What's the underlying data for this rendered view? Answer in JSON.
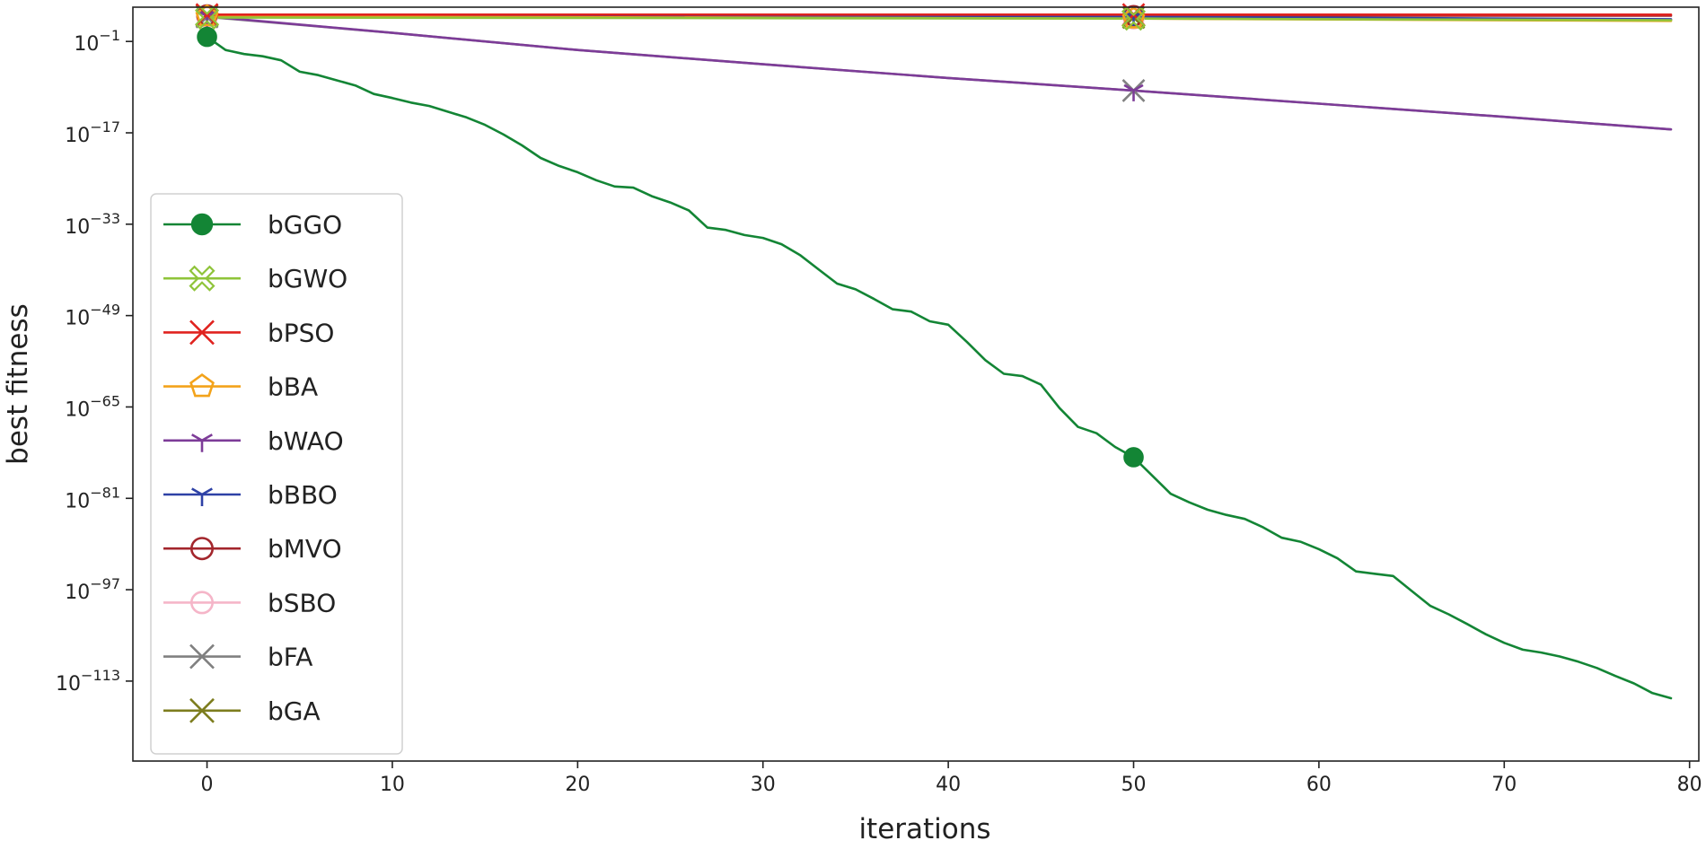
{
  "chart_data": {
    "type": "line",
    "xlabel": "iterations",
    "ylabel": "best fitness",
    "yscale": "log",
    "xlim": [
      -4,
      80.5
    ],
    "ylim_exponent": [
      -127,
      5
    ],
    "x_ticks": [
      {
        "value": 0,
        "label": "0"
      },
      {
        "value": 10,
        "label": "10"
      },
      {
        "value": 20,
        "label": "20"
      },
      {
        "value": 30,
        "label": "30"
      },
      {
        "value": 40,
        "label": "40"
      },
      {
        "value": 50,
        "label": "50"
      },
      {
        "value": 60,
        "label": "60"
      },
      {
        "value": 70,
        "label": "70"
      },
      {
        "value": 80,
        "label": "80"
      }
    ],
    "y_ticks": [
      {
        "exp": -1,
        "base": "10",
        "sup": "−1"
      },
      {
        "exp": -17,
        "base": "10",
        "sup": "−17"
      },
      {
        "exp": -33,
        "base": "10",
        "sup": "−33"
      },
      {
        "exp": -49,
        "base": "10",
        "sup": "−49"
      },
      {
        "exp": -65,
        "base": "10",
        "sup": "−65"
      },
      {
        "exp": -81,
        "base": "10",
        "sup": "−81"
      },
      {
        "exp": -97,
        "base": "10",
        "sup": "−97"
      },
      {
        "exp": -113,
        "base": "10",
        "sup": "−113"
      }
    ],
    "legend_position": "center-left",
    "marker_iterations": [
      0,
      50
    ],
    "series": [
      {
        "name": "bGGO",
        "color": "#138535",
        "marker": "filled-circle",
        "points_exp": [
          [
            0,
            -0.2
          ],
          [
            1,
            -2.5
          ],
          [
            2,
            -3.2
          ],
          [
            3,
            -3.6
          ],
          [
            4,
            -4.3
          ],
          [
            5,
            -6.3
          ],
          [
            6,
            -6.9
          ],
          [
            7,
            -7.8
          ],
          [
            8,
            -8.7
          ],
          [
            9,
            -10.2
          ],
          [
            10,
            -10.9
          ],
          [
            11,
            -11.7
          ],
          [
            12,
            -12.3
          ],
          [
            13,
            -13.3
          ],
          [
            14,
            -14.3
          ],
          [
            15,
            -15.6
          ],
          [
            16,
            -17.3
          ],
          [
            17,
            -19.2
          ],
          [
            18,
            -21.4
          ],
          [
            19,
            -22.8
          ],
          [
            20,
            -23.9
          ],
          [
            21,
            -25.3
          ],
          [
            22,
            -26.4
          ],
          [
            23,
            -26.6
          ],
          [
            24,
            -28.1
          ],
          [
            25,
            -29.2
          ],
          [
            26,
            -30.6
          ],
          [
            27,
            -33.6
          ],
          [
            28,
            -34.0
          ],
          [
            29,
            -34.9
          ],
          [
            30,
            -35.4
          ],
          [
            31,
            -36.5
          ],
          [
            32,
            -38.4
          ],
          [
            33,
            -40.9
          ],
          [
            34,
            -43.4
          ],
          [
            35,
            -44.4
          ],
          [
            36,
            -46.1
          ],
          [
            37,
            -47.9
          ],
          [
            38,
            -48.3
          ],
          [
            39,
            -50.0
          ],
          [
            40,
            -50.6
          ],
          [
            41,
            -53.6
          ],
          [
            42,
            -56.8
          ],
          [
            43,
            -59.2
          ],
          [
            44,
            -59.6
          ],
          [
            45,
            -61.1
          ],
          [
            46,
            -65.2
          ],
          [
            47,
            -68.5
          ],
          [
            48,
            -69.6
          ],
          [
            49,
            -72.0
          ],
          [
            50,
            -73.8
          ],
          [
            51,
            -77.0
          ],
          [
            52,
            -80.2
          ],
          [
            53,
            -81.7
          ],
          [
            54,
            -83.0
          ],
          [
            55,
            -83.9
          ],
          [
            56,
            -84.6
          ],
          [
            57,
            -86.1
          ],
          [
            58,
            -87.9
          ],
          [
            59,
            -88.6
          ],
          [
            60,
            -89.9
          ],
          [
            61,
            -91.5
          ],
          [
            62,
            -93.8
          ],
          [
            63,
            -94.2
          ],
          [
            64,
            -94.6
          ],
          [
            65,
            -97.2
          ],
          [
            66,
            -99.8
          ],
          [
            67,
            -101.3
          ],
          [
            68,
            -103.0
          ],
          [
            69,
            -104.8
          ],
          [
            70,
            -106.3
          ],
          [
            71,
            -107.5
          ],
          [
            72,
            -108.0
          ],
          [
            73,
            -108.7
          ],
          [
            74,
            -109.6
          ],
          [
            75,
            -110.7
          ],
          [
            76,
            -112.1
          ],
          [
            77,
            -113.4
          ],
          [
            78,
            -115.1
          ],
          [
            79,
            -116.0
          ]
        ]
      },
      {
        "name": "bGWO",
        "color": "#8fc43a",
        "marker": "open-cross-x",
        "points_exp": [
          [
            0,
            3.2
          ],
          [
            50,
            3.0
          ],
          [
            79,
            2.7
          ]
        ]
      },
      {
        "name": "bPSO",
        "color": "#e0231f",
        "marker": "x",
        "points_exp": [
          [
            0,
            3.7
          ],
          [
            50,
            3.7
          ],
          [
            79,
            3.7
          ]
        ]
      },
      {
        "name": "bBA",
        "color": "#f3a31b",
        "marker": "open-pentagon",
        "points_exp": [
          [
            0,
            3.4
          ],
          [
            50,
            3.0
          ],
          [
            79,
            2.6
          ]
        ]
      },
      {
        "name": "bWAO",
        "color": "#7d3c98",
        "marker": "tri-down",
        "points_exp": [
          [
            0,
            3.4
          ],
          [
            10,
            0.5
          ],
          [
            20,
            -2.5
          ],
          [
            30,
            -5.0
          ],
          [
            40,
            -7.4
          ],
          [
            50,
            -9.6
          ],
          [
            60,
            -11.9
          ],
          [
            70,
            -14.2
          ],
          [
            79,
            -16.4
          ]
        ]
      },
      {
        "name": "bBBO",
        "color": "#2e41a6",
        "marker": "tri-down",
        "points_exp": [
          [
            0,
            3.5
          ],
          [
            50,
            3.3
          ],
          [
            79,
            2.9
          ]
        ]
      },
      {
        "name": "bMVO",
        "color": "#a3262c",
        "marker": "open-circle",
        "points_exp": [
          [
            0,
            3.6
          ],
          [
            50,
            3.5
          ],
          [
            79,
            3.5
          ]
        ]
      },
      {
        "name": "bSBO",
        "color": "#f5b5c8",
        "marker": "open-circle",
        "points_exp": [
          [
            0,
            3.3
          ],
          [
            50,
            3.0
          ],
          [
            79,
            2.8
          ]
        ]
      },
      {
        "name": "bFA",
        "color": "#808080",
        "marker": "x",
        "points_exp": [
          [
            0,
            3.3
          ],
          [
            10,
            0.5
          ],
          [
            20,
            -2.5
          ],
          [
            30,
            -5.0
          ],
          [
            40,
            -7.4
          ],
          [
            50,
            -9.6
          ],
          [
            60,
            -11.9
          ],
          [
            70,
            -14.2
          ],
          [
            79,
            -16.4
          ]
        ]
      },
      {
        "name": "bGA",
        "color": "#7d7d1e",
        "marker": "x",
        "points_exp": [
          [
            0,
            3.5
          ],
          [
            50,
            3.2
          ],
          [
            79,
            2.8
          ]
        ]
      }
    ]
  }
}
